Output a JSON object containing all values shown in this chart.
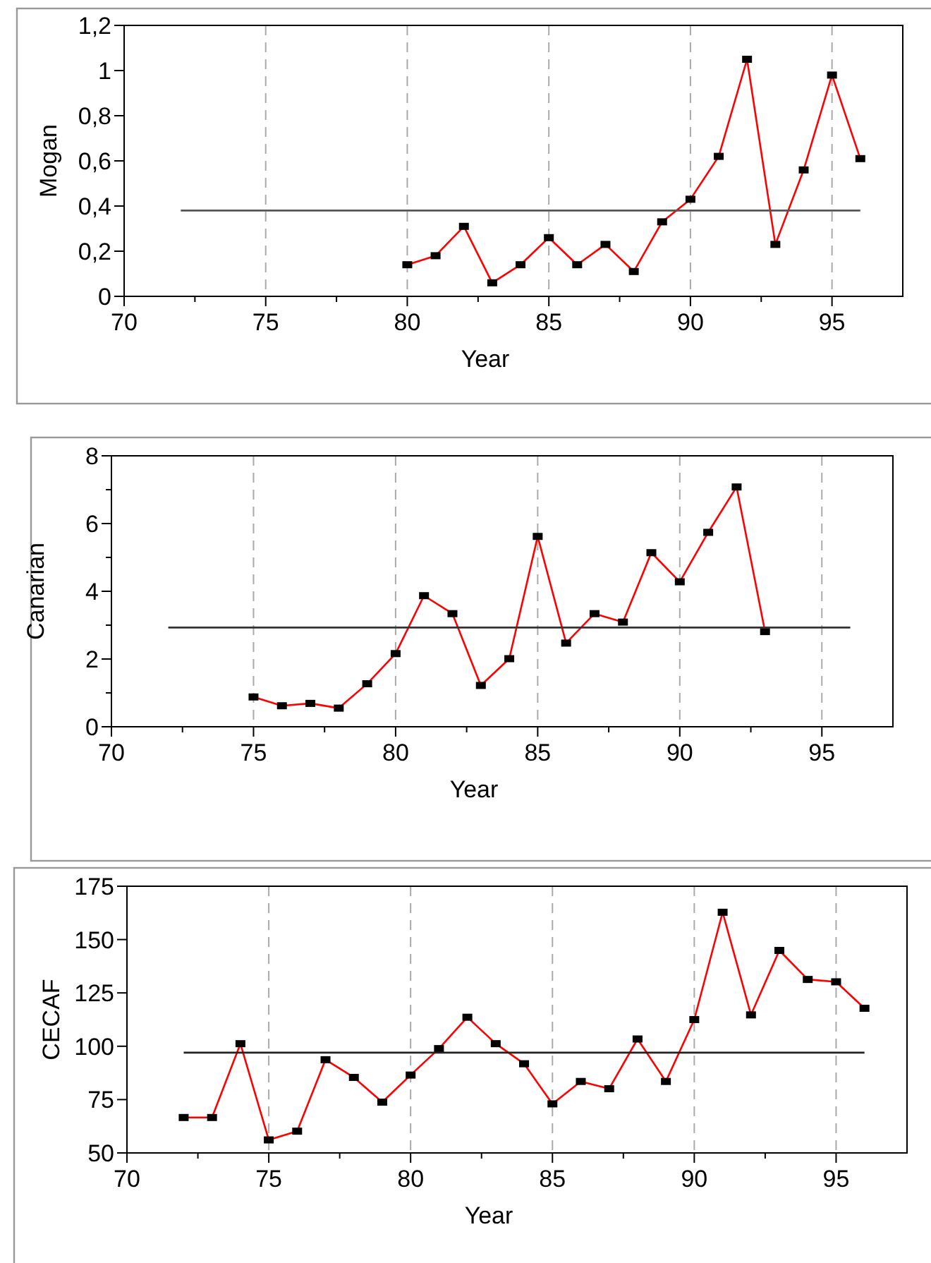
{
  "chart_data": [
    {
      "type": "line",
      "ylabel": "Mogan",
      "xlabel": "Year",
      "xlim": [
        70,
        97.5
      ],
      "xticks": [
        70,
        {
          "value": 72.5,
          "label": null
        },
        75,
        {
          "value": 77.5,
          "label": null
        },
        80,
        {
          "value": 82.5,
          "label": null
        },
        85,
        {
          "value": 87.5,
          "label": null
        },
        90,
        {
          "value": 92.5,
          "label": null
        },
        95
      ],
      "ylim": [
        0,
        1.2
      ],
      "yticks": [
        {
          "value": 0,
          "label": "0"
        },
        {
          "value": 0.2,
          "label": "0,2"
        },
        {
          "value": 0.4,
          "label": "0,4"
        },
        {
          "value": 0.6,
          "label": "0,6"
        },
        {
          "value": 0.8,
          "label": "0,8"
        },
        {
          "value": 1,
          "label": "1"
        },
        {
          "value": 1.2,
          "label": "1,2"
        }
      ],
      "grid": "x",
      "series": [
        {
          "color": "#ff0000",
          "marker": "square",
          "x": [
            80,
            81,
            82,
            83,
            84,
            85,
            86,
            87,
            88,
            89,
            90,
            91,
            92,
            93,
            94,
            95,
            96
          ],
          "values": [
            0.14,
            0.18,
            0.31,
            0.06,
            0.14,
            0.26,
            0.14,
            0.23,
            0.11,
            0.33,
            0.43,
            0.62,
            1.05,
            0.23,
            0.56,
            0.98,
            0.61
          ]
        },
        {
          "color": "#555555",
          "marker": "none",
          "x": [
            72,
            96
          ],
          "values": [
            0.38,
            0.38
          ]
        }
      ]
    },
    {
      "type": "line",
      "ylabel": "Canarian",
      "xlabel": "Year",
      "xlim": [
        70,
        97.5
      ],
      "xticks": [
        70,
        {
          "value": 72.5,
          "label": null
        },
        75,
        {
          "value": 77.5,
          "label": null
        },
        80,
        {
          "value": 82.5,
          "label": null
        },
        85,
        {
          "value": 87.5,
          "label": null
        },
        90,
        {
          "value": 92.5,
          "label": null
        },
        95
      ],
      "ylim": [
        0,
        8
      ],
      "yticks": [
        0,
        {
          "value": 1,
          "label": null
        },
        2,
        {
          "value": 3,
          "label": null
        },
        4,
        {
          "value": 5,
          "label": null
        },
        6,
        {
          "value": 7,
          "label": null
        },
        8
      ],
      "grid": "x",
      "series": [
        {
          "color": "#ff0000",
          "marker": "square",
          "x": [
            75,
            76,
            77,
            78,
            79,
            80,
            81,
            82,
            83,
            84,
            85,
            86,
            87,
            88,
            89,
            90,
            91,
            92,
            93
          ],
          "values": [
            0.88,
            0.62,
            0.69,
            0.55,
            1.27,
            2.16,
            3.87,
            3.34,
            1.22,
            2.01,
            5.62,
            2.47,
            3.34,
            3.09,
            5.14,
            4.28,
            5.74,
            7.08,
            2.81
          ]
        },
        {
          "color": "#333333",
          "marker": "none",
          "x": [
            72,
            96
          ],
          "values": [
            2.93,
            2.93
          ]
        }
      ]
    },
    {
      "type": "line",
      "ylabel": "CECAF",
      "xlabel": "Year",
      "xlim": [
        70,
        97.5
      ],
      "xticks": [
        70,
        {
          "value": 72.5,
          "label": null
        },
        75,
        {
          "value": 77.5,
          "label": null
        },
        80,
        {
          "value": 82.5,
          "label": null
        },
        85,
        {
          "value": 87.5,
          "label": null
        },
        90,
        {
          "value": 92.5,
          "label": null
        },
        95
      ],
      "ylim": [
        50,
        175
      ],
      "yticks": [
        50,
        75,
        100,
        125,
        150,
        175
      ],
      "grid": "x",
      "series": [
        {
          "color": "#ff0000",
          "marker": "square",
          "x": [
            72,
            73,
            74,
            75,
            76,
            77,
            78,
            79,
            80,
            81,
            82,
            83,
            84,
            85,
            86,
            87,
            88,
            89,
            90,
            91,
            92,
            93,
            94,
            95,
            96
          ],
          "values": [
            66.6,
            66.6,
            101.2,
            56.1,
            60.2,
            93.7,
            85.4,
            73.8,
            86.5,
            98.9,
            113.6,
            101.2,
            91.8,
            73.0,
            83.5,
            80.1,
            103.4,
            83.5,
            112.5,
            162.8,
            114.7,
            144.9,
            131.3,
            130.2,
            117.8
          ]
        },
        {
          "color": "#222222",
          "marker": "none",
          "x": [
            72,
            96
          ],
          "values": [
            97,
            97
          ]
        }
      ]
    }
  ]
}
